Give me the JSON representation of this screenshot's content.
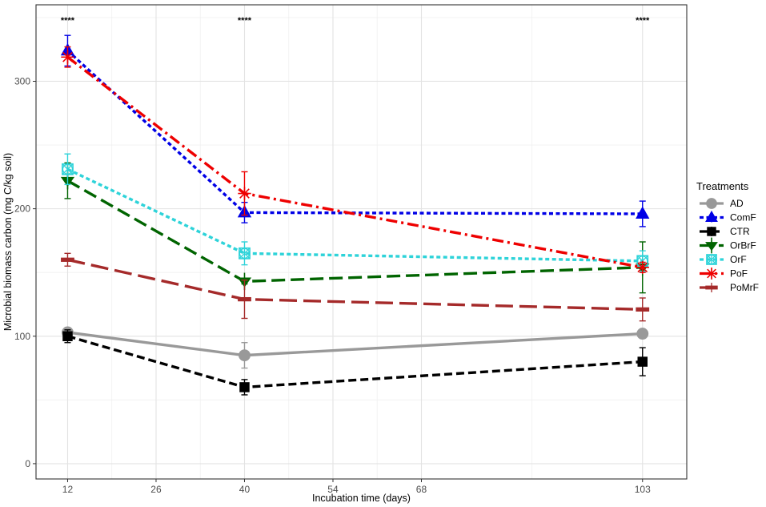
{
  "chart_data": {
    "type": "line",
    "xlabel": "Incubation time (days)",
    "ylabel": "Microbial biomass carbon (mg C/kg soil)",
    "xlim": [
      7,
      110
    ],
    "ylim": [
      -12,
      360
    ],
    "x_ticks": [
      12,
      26,
      40,
      54,
      68,
      103
    ],
    "y_ticks": [
      0,
      100,
      200,
      300
    ],
    "grid": true,
    "legend": {
      "title": "Treatments",
      "position": "right"
    },
    "annotations": [
      {
        "x": 12,
        "text": "****"
      },
      {
        "x": 40,
        "text": "****"
      },
      {
        "x": 103,
        "text": "****"
      }
    ],
    "x": [
      12,
      40,
      103
    ],
    "series": [
      {
        "name": "AD",
        "color": "#999999",
        "line": "solid",
        "marker": "circle",
        "values": [
          103,
          85,
          102
        ],
        "errors": [
          3,
          10,
          2
        ]
      },
      {
        "name": "ComF",
        "color": "#0000e6",
        "line": "dotted",
        "marker": "triangle",
        "values": [
          324,
          197,
          196
        ],
        "errors": [
          12,
          8,
          10
        ]
      },
      {
        "name": "CTR",
        "color": "#000000",
        "line": "dashed",
        "marker": "square",
        "values": [
          100,
          60,
          80
        ],
        "errors": [
          5,
          6,
          11
        ]
      },
      {
        "name": "OrBrF",
        "color": "#006400",
        "line": "longdash",
        "marker": "trident",
        "values": [
          222,
          143,
          154
        ],
        "errors": [
          14,
          2,
          20
        ]
      },
      {
        "name": "OrF",
        "color": "#2ed3d9",
        "line": "dotted",
        "marker": "boxcross",
        "values": [
          231,
          165,
          159
        ],
        "errors": [
          12,
          9,
          8
        ]
      },
      {
        "name": "PoF",
        "color": "#ee0000",
        "line": "dotdash",
        "marker": "asterisk",
        "values": [
          319,
          212,
          154
        ],
        "errors": [
          8,
          17,
          4
        ]
      },
      {
        "name": "PoMrF",
        "color": "#a52a2a",
        "line": "twodash",
        "marker": "bar",
        "values": [
          160,
          129,
          121
        ],
        "errors": [
          5,
          15,
          9
        ]
      }
    ]
  }
}
